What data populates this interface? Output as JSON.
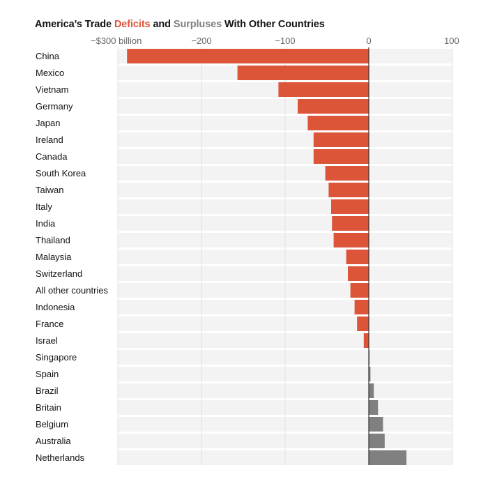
{
  "colors": {
    "deficit": "#dc5539",
    "surplus": "#808080",
    "row_background": "#f3f3f3",
    "grid": "#e0e0e0",
    "zero_line": "#333333",
    "text": "#121212",
    "tick_text": "#666666"
  },
  "title": {
    "prefix": "America’s Trade ",
    "deficits": "Deficits",
    "middle": " and ",
    "surpluses": "Surpluses",
    "suffix": " With Other Countries"
  },
  "chart_data": {
    "type": "bar",
    "orientation": "horizontal",
    "categories": [
      "China",
      "Mexico",
      "Vietnam",
      "Germany",
      "Japan",
      "Ireland",
      "Canada",
      "South Korea",
      "Taiwan",
      "Italy",
      "India",
      "Thailand",
      "Malaysia",
      "Switzerland",
      "All other countries",
      "Indonesia",
      "France",
      "Israel",
      "Singapore",
      "Spain",
      "Brazil",
      "Britain",
      "Belgium",
      "Australia",
      "Netherlands"
    ],
    "values": [
      -289,
      -157,
      -108,
      -85,
      -73,
      -66,
      -66,
      -52,
      -48,
      -45,
      -44,
      -42,
      -27,
      -25,
      -22,
      -17,
      -14,
      -6,
      1,
      2,
      6,
      11,
      17,
      19,
      45
    ],
    "unit": "billion",
    "xlim": [
      -300,
      100
    ],
    "xticks": [
      -300,
      -200,
      -100,
      0,
      100
    ],
    "xtick_labels": [
      "−$300 billion",
      "−200",
      "−100",
      "0",
      "100"
    ],
    "grid": true,
    "axis_position": "top"
  }
}
